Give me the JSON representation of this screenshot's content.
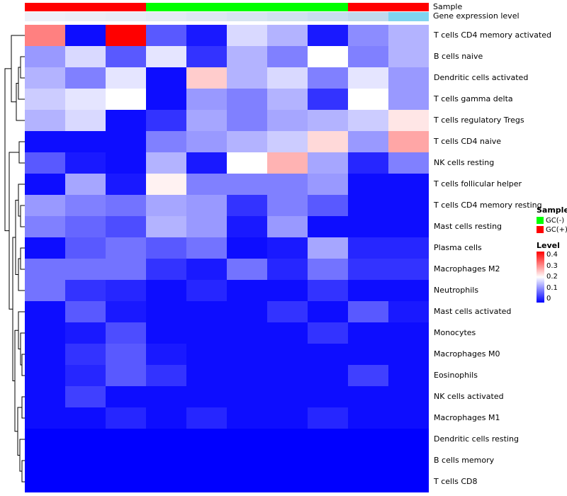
{
  "annotations": {
    "sample_label": "Sample",
    "gene_label": "Gene expression level"
  },
  "legend": {
    "sample_title": "Sample",
    "sample_items": [
      {
        "label": "GC(-)",
        "color": "#00FF00"
      },
      {
        "label": "GC(+)",
        "color": "#FF0000"
      }
    ],
    "level_title": "Level",
    "level_ticks": [
      "0.4",
      "0.3",
      "0.2",
      "0.1",
      "0"
    ]
  },
  "chart_data": {
    "type": "heatmap",
    "title": "",
    "rows": [
      "T cells CD4 memory activated",
      "B cells naive",
      "Dendritic cells activated",
      "T cells gamma delta",
      "T cells regulatory  Tregs",
      "T cells CD4 naive",
      "NK cells resting",
      "T cells follicular helper",
      "T cells CD4 memory resting",
      "Mast cells resting",
      "Plasma cells",
      "Macrophages M2",
      "Neutrophils",
      "Mast cells activated",
      "Monocytes",
      "Macrophages M0",
      "Eosinophils",
      "NK cells activated",
      "Macrophages M1",
      "Dendritic cells resting",
      "B cells memory",
      "T cells CD8"
    ],
    "n_columns": 10,
    "column_sample_group": [
      "GC(+)",
      "GC(+)",
      "GC(+)",
      "GC(-)",
      "GC(-)",
      "GC(-)",
      "GC(-)",
      "GC(-)",
      "GC(+)",
      "GC(+)"
    ],
    "sample_colors": {
      "GC(-)": "#00FF00",
      "GC(+)": "#FF0000"
    },
    "gene_expression_colors": [
      "#eef0f8",
      "#ebeef7",
      "#e8ecf6",
      "#e3eaf5",
      "#dde7f3",
      "#d7e4f2",
      "#d0e1f0",
      "#c9ddef",
      "#c0d9ed",
      "#7fd4f0"
    ],
    "color_scale": {
      "min": 0,
      "mid": 0.2,
      "max": 0.4,
      "min_color": "#0000FF",
      "mid_color": "#FFFFFF",
      "max_color": "#FF0000"
    },
    "values": [
      [
        0.3,
        0.01,
        0.42,
        0.07,
        0.02,
        0.17,
        0.14,
        0.02,
        0.11,
        0.14
      ],
      [
        0.12,
        0.17,
        0.07,
        0.18,
        0.04,
        0.14,
        0.1,
        0.2,
        0.1,
        0.14
      ],
      [
        0.14,
        0.1,
        0.18,
        0.01,
        0.24,
        0.14,
        0.17,
        0.1,
        0.18,
        0.12
      ],
      [
        0.16,
        0.18,
        0.2,
        0.01,
        0.12,
        0.1,
        0.14,
        0.04,
        0.2,
        0.12
      ],
      [
        0.14,
        0.17,
        0.01,
        0.04,
        0.13,
        0.1,
        0.13,
        0.14,
        0.16,
        0.22
      ],
      [
        0.01,
        0.01,
        0.01,
        0.1,
        0.12,
        0.14,
        0.16,
        0.23,
        0.12,
        0.27
      ],
      [
        0.07,
        0.02,
        0.01,
        0.14,
        0.02,
        0.2,
        0.26,
        0.13,
        0.03,
        0.1
      ],
      [
        0.01,
        0.13,
        0.02,
        0.21,
        0.1,
        0.1,
        0.1,
        0.12,
        0.01,
        0.01
      ],
      [
        0.12,
        0.1,
        0.09,
        0.13,
        0.12,
        0.04,
        0.1,
        0.07,
        0.01,
        0.01
      ],
      [
        0.1,
        0.08,
        0.06,
        0.14,
        0.12,
        0.02,
        0.12,
        0.01,
        0.01,
        0.01
      ],
      [
        0.01,
        0.07,
        0.09,
        0.07,
        0.09,
        0.01,
        0.02,
        0.13,
        0.03,
        0.03
      ],
      [
        0.09,
        0.09,
        0.09,
        0.04,
        0.02,
        0.09,
        0.03,
        0.09,
        0.04,
        0.04
      ],
      [
        0.09,
        0.04,
        0.03,
        0.01,
        0.03,
        0.01,
        0.01,
        0.04,
        0.01,
        0.01
      ],
      [
        0.01,
        0.07,
        0.02,
        0.01,
        0.01,
        0.01,
        0.04,
        0.01,
        0.07,
        0.02
      ],
      [
        0.01,
        0.02,
        0.06,
        0.01,
        0.01,
        0.01,
        0.01,
        0.04,
        0.01,
        0.01
      ],
      [
        0.01,
        0.04,
        0.07,
        0.02,
        0.01,
        0.01,
        0.01,
        0.01,
        0.01,
        0.01
      ],
      [
        0.01,
        0.03,
        0.07,
        0.04,
        0.01,
        0.01,
        0.01,
        0.01,
        0.05,
        0.01
      ],
      [
        0.01,
        0.05,
        0.01,
        0.01,
        0.01,
        0.01,
        0.01,
        0.01,
        0.01,
        0.01
      ],
      [
        0.01,
        0.01,
        0.03,
        0.01,
        0.03,
        0.01,
        0.01,
        0.03,
        0.01,
        0.01
      ],
      [
        0.0,
        0.0,
        0.0,
        0.0,
        0.0,
        0.0,
        0.0,
        0.0,
        0.0,
        0.0
      ],
      [
        0.0,
        0.0,
        0.0,
        0.0,
        0.0,
        0.0,
        0.0,
        0.0,
        0.0,
        0.0
      ],
      [
        0.0,
        0.0,
        0.0,
        0.0,
        0.0,
        0.0,
        0.0,
        0.0,
        0.0,
        0.0
      ]
    ]
  }
}
